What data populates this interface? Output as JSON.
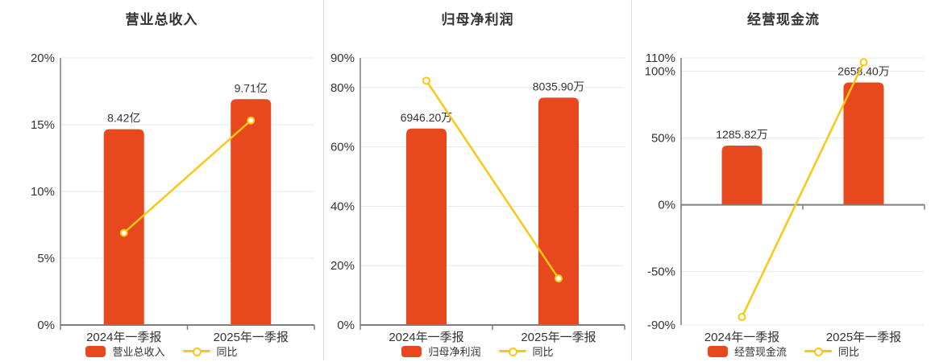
{
  "colors": {
    "bar": "#E8481D",
    "line": "#FAC813",
    "grid": "#E2E8EE",
    "axis": "#7E7E7E",
    "divider": "#DCDCDC",
    "text": "#333333"
  },
  "chart_data": [
    {
      "type": "bar",
      "title": "营业总收入",
      "categories": [
        "2024年一季报",
        "2025年一季报"
      ],
      "bar_series": {
        "name": "营业总收入",
        "labels": [
          "8.42亿",
          "9.71亿"
        ],
        "axis_pct": [
          14.66,
          16.91
        ]
      },
      "line_series": {
        "name": "同比",
        "values_pct": [
          6.9,
          15.32
        ]
      },
      "ylim": [
        0,
        20
      ],
      "yticks": [
        0,
        5,
        10,
        15,
        20
      ],
      "ytick_suffix": "%",
      "grid": true,
      "legend_position": "bottom"
    },
    {
      "type": "bar",
      "title": "归母净利润",
      "categories": [
        "2024年一季报",
        "2025年一季报"
      ],
      "bar_series": {
        "name": "归母净利润",
        "labels": [
          "6946.20万",
          "8035.90万"
        ],
        "axis_pct": [
          66.2,
          76.6
        ]
      },
      "line_series": {
        "name": "同比",
        "values_pct": [
          82.3,
          15.68
        ]
      },
      "ylim": [
        0,
        90
      ],
      "yticks": [
        0,
        20,
        40,
        60,
        80,
        90
      ],
      "ytick_suffix": "%",
      "grid": true,
      "legend_position": "bottom"
    },
    {
      "type": "bar",
      "title": "经营现金流",
      "categories": [
        "2024年一季报",
        "2025年一季报"
      ],
      "bar_series": {
        "name": "经营现金流",
        "labels": [
          "1285.82万",
          "2658.40万"
        ],
        "axis_pct": [
          44.3,
          91.6
        ]
      },
      "line_series": {
        "name": "同比",
        "values_pct": [
          -84,
          106.75
        ]
      },
      "ylim": [
        -90,
        110
      ],
      "yticks": [
        -90,
        -50,
        0,
        50,
        100,
        110
      ],
      "ytick_suffix": "%",
      "grid": true,
      "legend_position": "bottom"
    }
  ]
}
